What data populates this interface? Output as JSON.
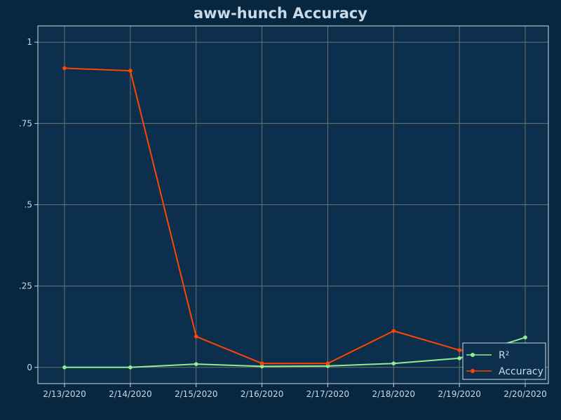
{
  "chart_data": {
    "type": "line",
    "title": "aww-hunch Accuracy",
    "xlabel": "",
    "ylabel": "",
    "categories": [
      "2/13/2020",
      "2/14/2020",
      "2/15/2020",
      "2/16/2020",
      "2/17/2020",
      "2/18/2020",
      "2/19/2020",
      "2/20/2020"
    ],
    "ylim": [
      -0.05,
      1.05
    ],
    "yticks": [
      0,
      0.25,
      0.5,
      0.75,
      1
    ],
    "ytick_labels": [
      "0",
      ".25",
      ".5",
      ".75",
      "1"
    ],
    "grid": true,
    "legend_position": "bottom-right",
    "series": [
      {
        "name": "R²",
        "color": "#90ee90",
        "values": [
          0.0,
          0.0,
          0.01,
          0.003,
          0.004,
          0.012,
          0.028,
          0.092
        ]
      },
      {
        "name": "Accuracy",
        "color": "#ff4500",
        "values": [
          0.92,
          0.912,
          0.095,
          0.012,
          0.012,
          0.112,
          0.053,
          0.04
        ]
      }
    ]
  },
  "colors": {
    "page_background": "#07263f",
    "plot_background": "#0b2f4c",
    "grid": "#707070",
    "frame": "#c9d9e6",
    "text": "#c9d9e6",
    "legend_background": "#0b2f4c"
  }
}
